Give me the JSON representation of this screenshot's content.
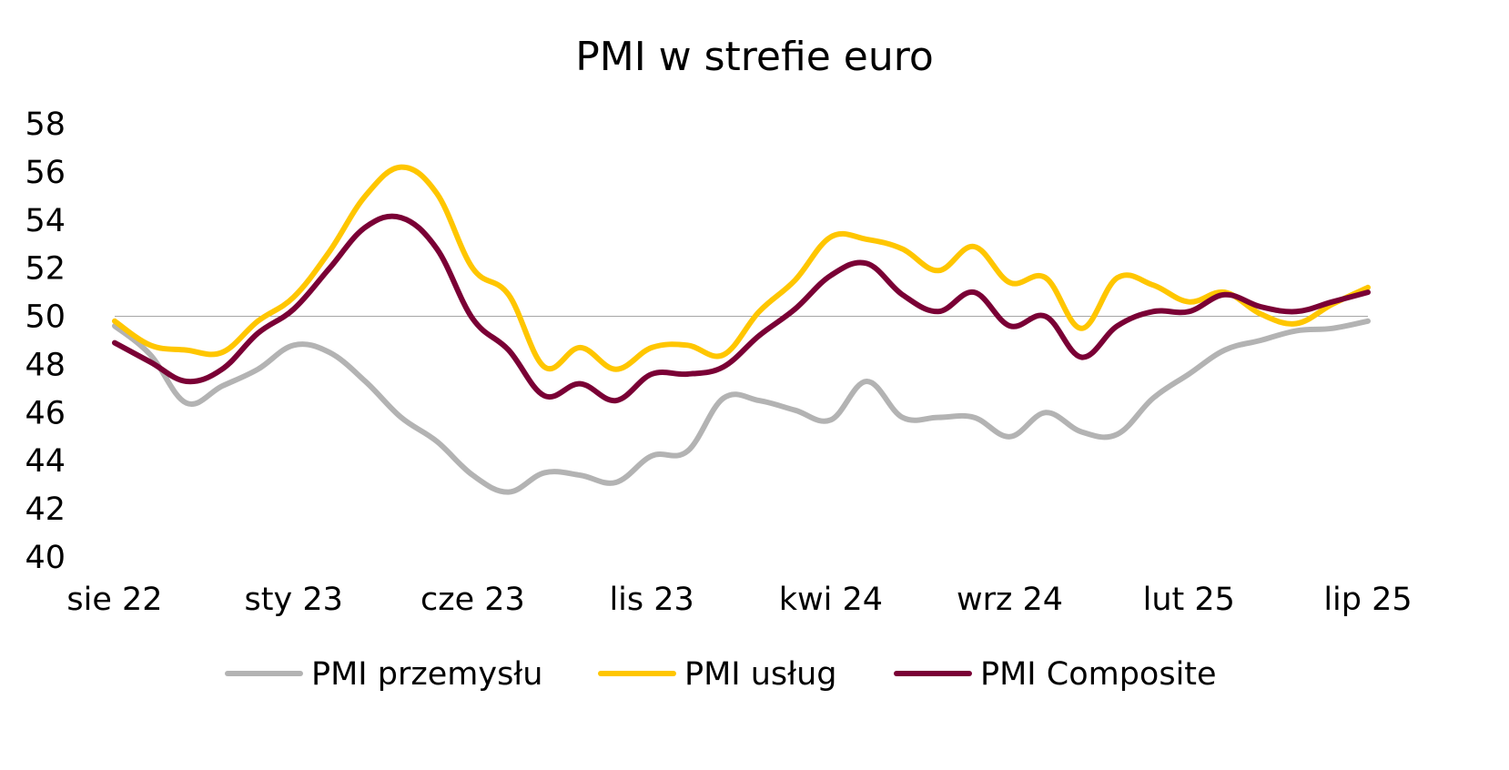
{
  "chart_data": {
    "type": "line",
    "title": "PMI w strefie euro",
    "xlabel": "",
    "ylabel": "",
    "ylim": [
      40,
      58
    ],
    "yticks": [
      40,
      42,
      44,
      46,
      48,
      50,
      52,
      54,
      56,
      58
    ],
    "reference_line": 50,
    "grid": false,
    "legend_position": "bottom",
    "x": [
      "sie 22",
      "wrz 22",
      "paź 22",
      "lis 22",
      "gru 22",
      "sty 23",
      "lut 23",
      "mar 23",
      "kwi 23",
      "maj 23",
      "cze 23",
      "lip 23",
      "sie 23",
      "wrz 23",
      "paź 23",
      "lis 23",
      "gru 23",
      "sty 24",
      "lut 24",
      "mar 24",
      "kwi 24",
      "maj 24",
      "cze 24",
      "lip 24",
      "sie 24",
      "wrz 24",
      "paź 24",
      "lis 24",
      "gru 24",
      "sty 25",
      "lut 25",
      "mar 25",
      "kwi 25",
      "maj 25",
      "cze 25",
      "lip 25"
    ],
    "x_tick_labels": [
      "sie 22",
      "sty 23",
      "cze 23",
      "lis 23",
      "kwi 24",
      "wrz 24",
      "lut 25",
      "lip 25"
    ],
    "series": [
      {
        "name": "PMI przemysłu",
        "color": "#b3b3b3",
        "values": [
          49.6,
          48.4,
          46.4,
          47.1,
          47.8,
          48.8,
          48.5,
          47.3,
          45.8,
          44.8,
          43.4,
          42.7,
          43.5,
          43.4,
          43.1,
          44.2,
          44.4,
          46.6,
          46.5,
          46.1,
          45.7,
          47.3,
          45.8,
          45.8,
          45.8,
          45.0,
          46.0,
          45.2,
          45.1,
          46.6,
          47.6,
          48.6,
          49.0,
          49.4,
          49.5,
          49.8
        ]
      },
      {
        "name": "PMI usług",
        "color": "#ffc600",
        "values": [
          49.8,
          48.8,
          48.6,
          48.5,
          49.8,
          50.8,
          52.7,
          55.0,
          56.2,
          55.1,
          52.0,
          50.9,
          47.9,
          48.7,
          47.8,
          48.7,
          48.8,
          48.4,
          50.2,
          51.5,
          53.3,
          53.2,
          52.8,
          51.9,
          52.9,
          51.4,
          51.6,
          49.5,
          51.6,
          51.3,
          50.6,
          51.0,
          50.1,
          49.7,
          50.5,
          51.2
        ]
      },
      {
        "name": "PMI Composite",
        "color": "#7a0035",
        "values": [
          48.9,
          48.1,
          47.3,
          47.8,
          49.3,
          50.3,
          52.0,
          53.7,
          54.1,
          52.8,
          49.9,
          48.6,
          46.7,
          47.2,
          46.5,
          47.6,
          47.6,
          47.9,
          49.2,
          50.3,
          51.7,
          52.2,
          50.9,
          50.2,
          51.0,
          49.6,
          50.0,
          48.3,
          49.6,
          50.2,
          50.2,
          50.9,
          50.4,
          50.2,
          50.6,
          51.0
        ]
      }
    ]
  }
}
